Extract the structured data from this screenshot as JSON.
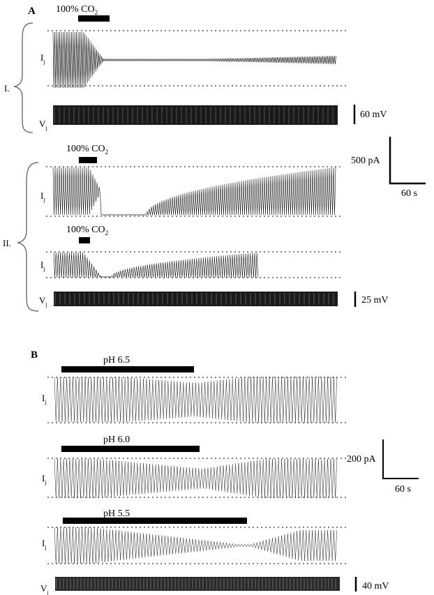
{
  "panel_a": {
    "label": "A",
    "group_1_label": "I.",
    "group_2_label": "II.",
    "co2_bar_label": "100% CO",
    "co2_subscript": "2",
    "current_symbol": "I",
    "voltage_symbol": "V",
    "junction_subscript": "j",
    "scale_voltage_1": "60 mV",
    "scale_current": "500 pA",
    "scale_time": "60 s",
    "scale_voltage_2": "25 mV"
  },
  "panel_b": {
    "label": "B",
    "current_symbol": "I",
    "voltage_symbol": "V",
    "junction_subscript": "j",
    "ph_labels": [
      "pH 6.5",
      "pH 6.0",
      "pH 5.5"
    ],
    "scale_current": "200 pA",
    "scale_time": "60 s",
    "scale_voltage": "40 mV"
  }
}
